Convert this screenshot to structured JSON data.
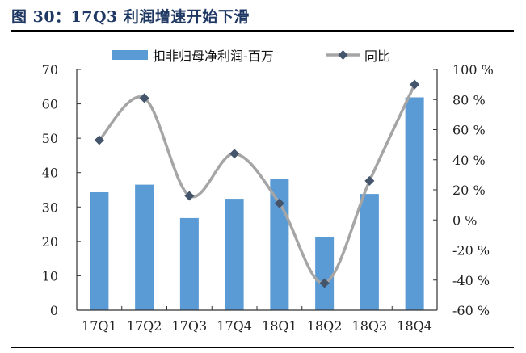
{
  "title": "图 30：17Q3 利润增速开始下滑",
  "colors": {
    "bar": "#5B9BD5",
    "line": "#A5A5A5",
    "marker": "#44546A",
    "title": "#1F3864"
  },
  "chart_data": {
    "type": "bar+line",
    "title": "图 30：17Q3 利润增速开始下滑",
    "categories": [
      "17Q1",
      "17Q2",
      "17Q3",
      "17Q4",
      "18Q1",
      "18Q2",
      "18Q3",
      "18Q4"
    ],
    "series": [
      {
        "name": "扣非归母净利润-百万",
        "type": "bar",
        "axis": "left",
        "values": [
          34.3,
          36.5,
          26.8,
          32.4,
          38.2,
          21.3,
          33.8,
          61.9
        ]
      },
      {
        "name": "同比",
        "type": "line",
        "axis": "right",
        "unit": "%",
        "values": [
          53,
          81,
          16,
          44,
          11,
          -42,
          26,
          90
        ]
      }
    ],
    "left_axis": {
      "ylim": [
        0,
        70
      ],
      "ticks": [
        "0",
        "10",
        "20",
        "30",
        "40",
        "50",
        "60",
        "70"
      ]
    },
    "right_axis": {
      "ylim": [
        -60,
        100
      ],
      "ticks": [
        "-60%",
        "-40%",
        "-20%",
        "0%",
        "20%",
        "40%",
        "60%",
        "80%",
        "100%"
      ]
    },
    "legend": {
      "position": "top",
      "entries": [
        "扣非归母净利润-百万",
        "同比"
      ]
    },
    "grid": false
  }
}
